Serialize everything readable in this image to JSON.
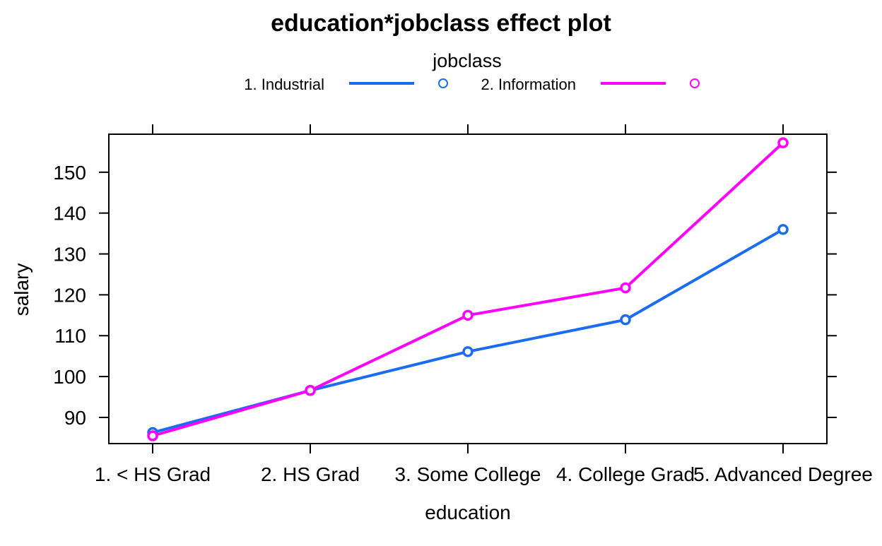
{
  "chart_data": {
    "type": "line",
    "title": "education*jobclass effect plot",
    "xlabel": "education",
    "ylabel": "salary",
    "categories": [
      "1. < HS Grad",
      "2. HS Grad",
      "3. Some College",
      "4. College Grad",
      "5. Advanced Degree"
    ],
    "yticks": [
      90,
      100,
      110,
      120,
      130,
      140,
      150
    ],
    "ylim": [
      83.6,
      159.3
    ],
    "legend": {
      "title": "jobclass",
      "placement": "top"
    },
    "series": [
      {
        "name": "1. Industrial",
        "color": "#1a6cf0",
        "values": [
          86.3,
          96.6,
          106.1,
          113.9,
          136.0
        ]
      },
      {
        "name": "2. Information",
        "color": "#ff00ff",
        "values": [
          85.5,
          96.6,
          115.0,
          121.7,
          157.2
        ]
      }
    ],
    "grid": false,
    "marker": "open-circle"
  }
}
